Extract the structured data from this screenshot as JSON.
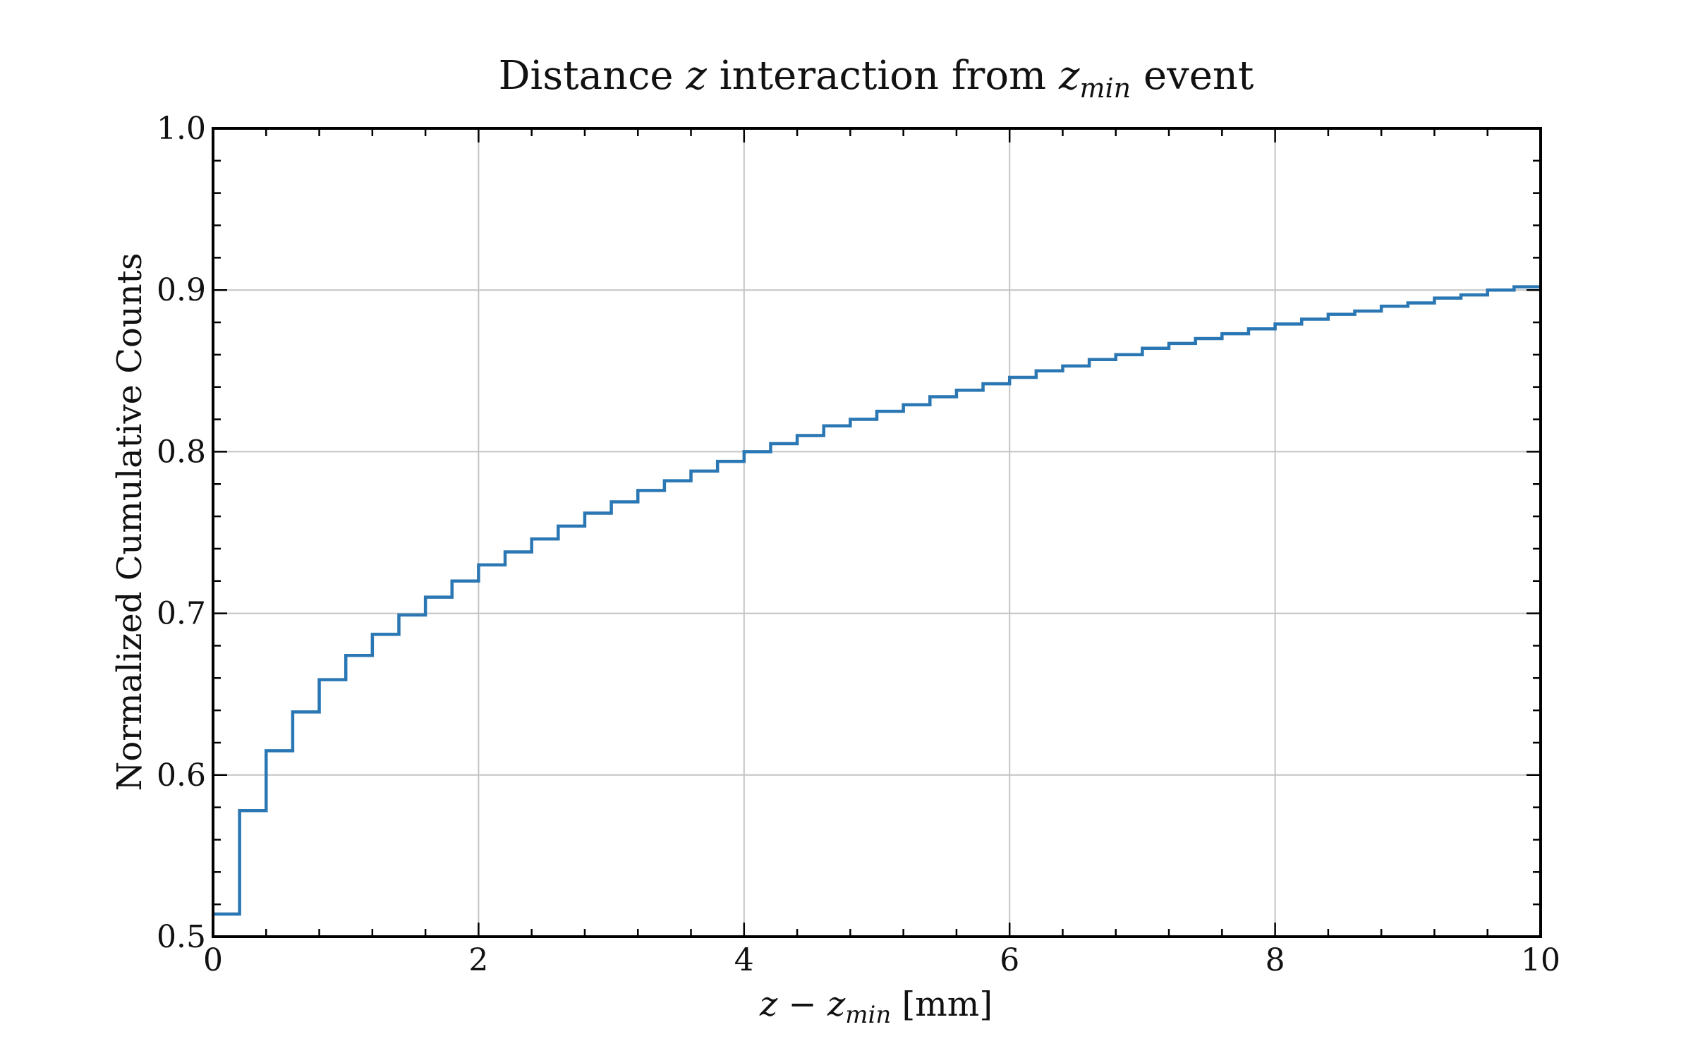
{
  "chart_data": {
    "type": "line",
    "drawstyle": "steps-post",
    "title": {
      "part1": "Distance ",
      "z": "z",
      "part2": " interaction from ",
      "zmin_base": "z",
      "zmin_sub": "min",
      "part3": " event"
    },
    "xlabel": {
      "z": "z",
      "minus": " − ",
      "zmin_base": "z",
      "zmin_sub": "min",
      "unit": " [mm]"
    },
    "ylabel": "Normalized Cumulative Counts",
    "xlim": [
      0,
      10
    ],
    "ylim": [
      0.5,
      1.0
    ],
    "xticks": [
      0,
      2,
      4,
      6,
      8,
      10
    ],
    "xtick_labels": [
      "0",
      "2",
      "4",
      "6",
      "8",
      "10"
    ],
    "yticks": [
      0.5,
      0.6,
      0.7,
      0.8,
      0.9,
      1.0
    ],
    "ytick_labels": [
      "0.5",
      "0.6",
      "0.7",
      "0.8",
      "0.9",
      "1.0"
    ],
    "grid": true,
    "series_color": "#2a77b4",
    "x": [
      0,
      0.2,
      0.4,
      0.6,
      0.8,
      1.0,
      1.2,
      1.4,
      1.6,
      1.8,
      2.0,
      2.2,
      2.4,
      2.6,
      2.8,
      3.0,
      3.2,
      3.4,
      3.6,
      3.8,
      4.0,
      4.2,
      4.4,
      4.6,
      4.8,
      5.0,
      5.2,
      5.4,
      5.6,
      5.8,
      6.0,
      6.2,
      6.4,
      6.6,
      6.8,
      7.0,
      7.2,
      7.4,
      7.6,
      7.8,
      8.0,
      8.2,
      8.4,
      8.6,
      8.8,
      9.0,
      9.2,
      9.4,
      9.6,
      9.8
    ],
    "values": [
      0.514,
      0.578,
      0.615,
      0.639,
      0.659,
      0.674,
      0.687,
      0.699,
      0.71,
      0.72,
      0.73,
      0.738,
      0.746,
      0.754,
      0.762,
      0.769,
      0.776,
      0.782,
      0.788,
      0.794,
      0.8,
      0.805,
      0.81,
      0.816,
      0.82,
      0.825,
      0.829,
      0.834,
      0.838,
      0.842,
      0.846,
      0.85,
      0.853,
      0.857,
      0.86,
      0.864,
      0.867,
      0.87,
      0.873,
      0.876,
      0.879,
      0.882,
      0.885,
      0.887,
      0.89,
      0.892,
      0.895,
      0.897,
      0.9,
      0.902
    ],
    "x_end": 10
  }
}
